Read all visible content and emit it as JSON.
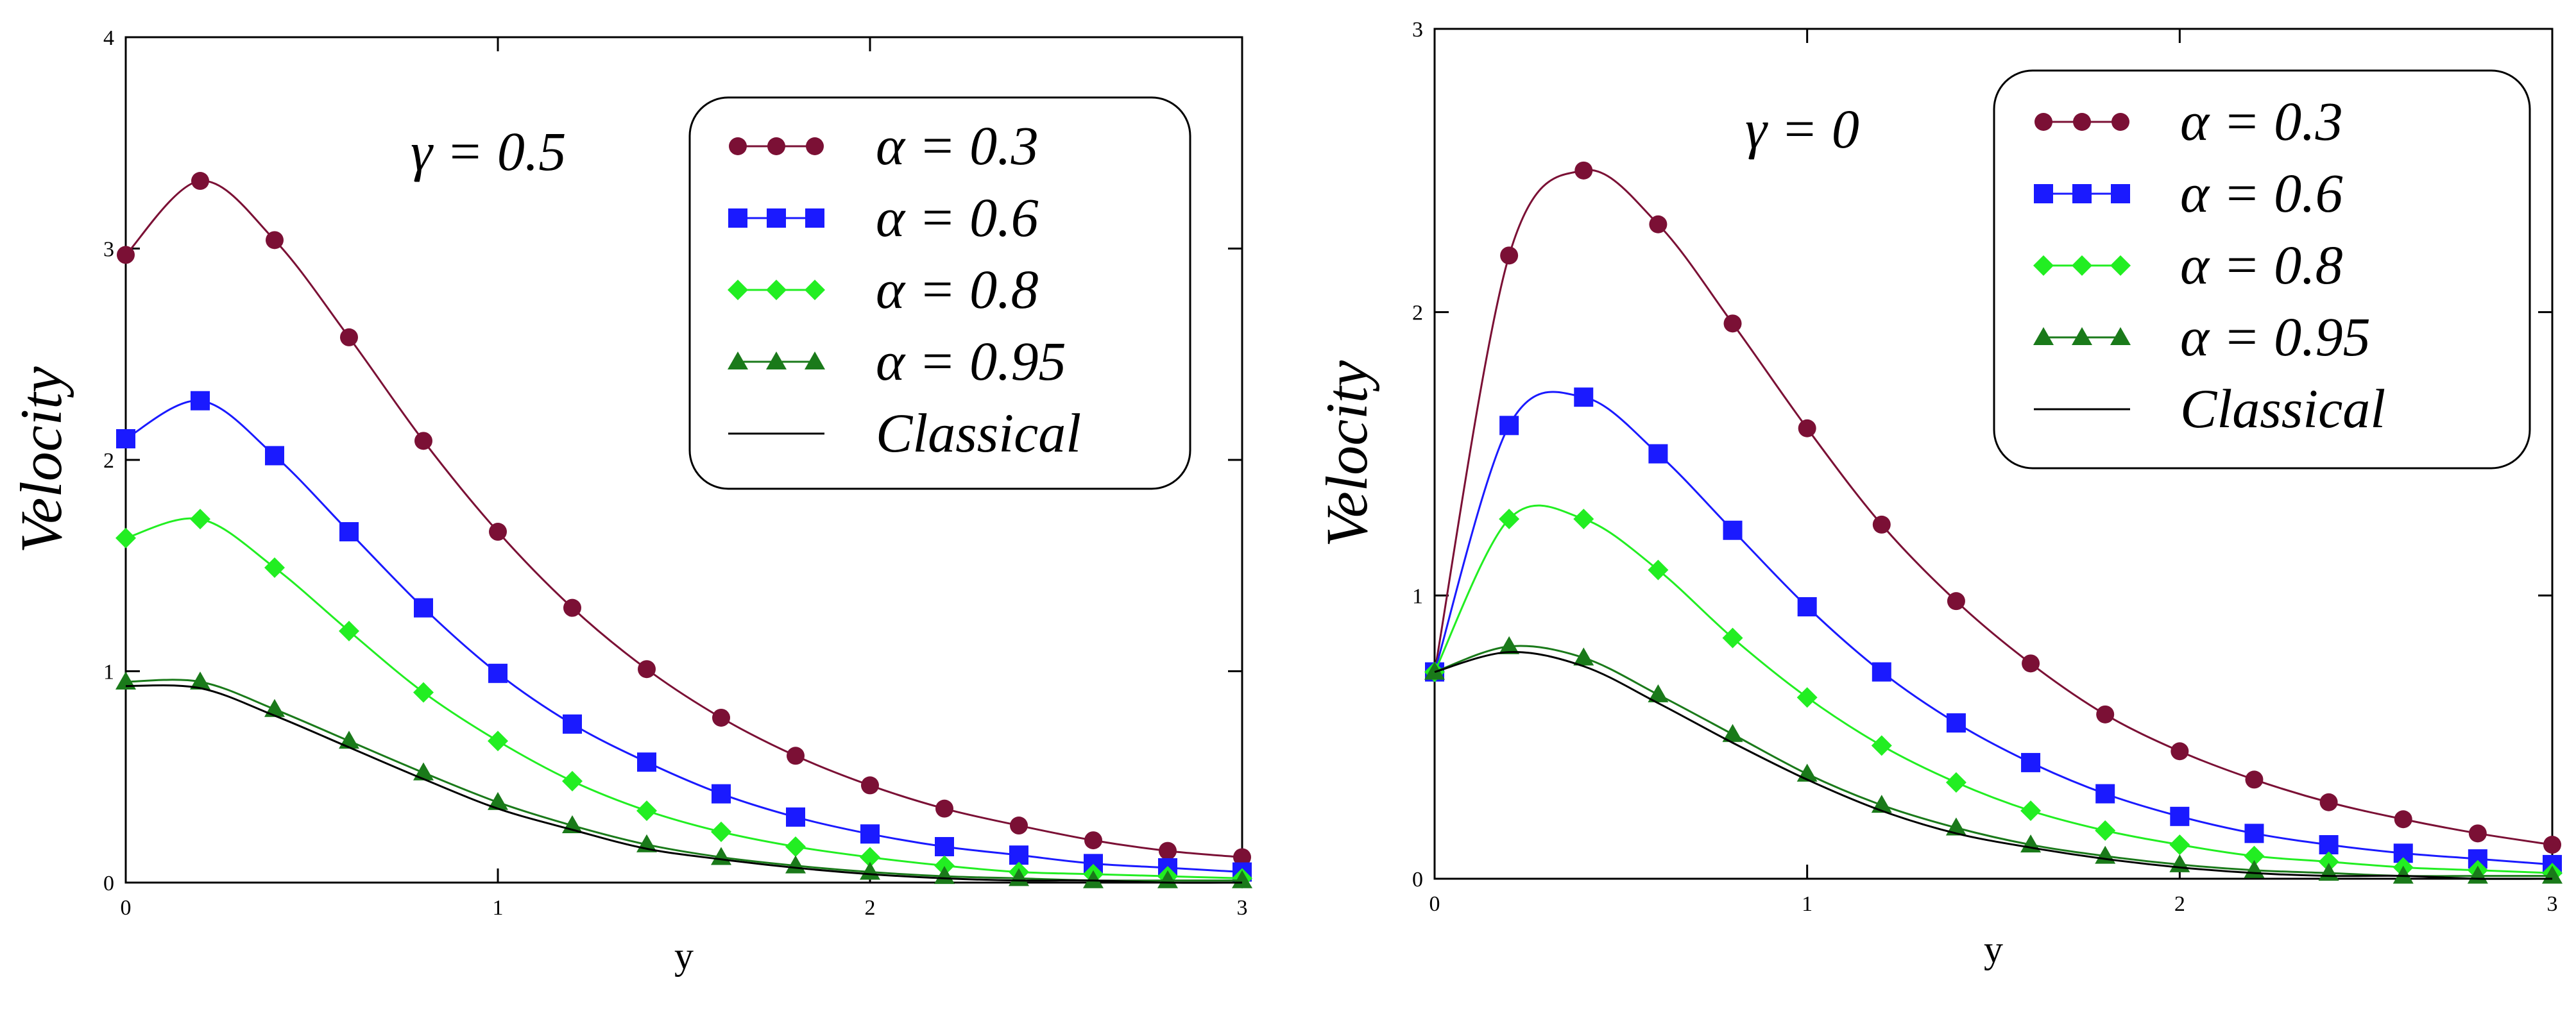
{
  "chart_data": [
    {
      "type": "line",
      "annotation": "γ = 0.5",
      "xlabel": "y",
      "ylabel": "Velocity",
      "xlim": [
        0,
        3
      ],
      "ylim": [
        0,
        4
      ],
      "xticks": [
        "0",
        "1",
        "2",
        "3"
      ],
      "yticks": [
        "0",
        "1",
        "2",
        "3",
        "4"
      ],
      "grid": false,
      "legend_position": "top-right",
      "series": [
        {
          "name": "α = 0.3",
          "color": "#7b1035",
          "marker": "circle",
          "x": [
            0,
            0.2,
            0.4,
            0.6,
            0.8,
            1.0,
            1.2,
            1.4,
            1.6,
            1.8,
            2.0,
            2.2,
            2.4,
            2.6,
            2.8,
            3.0
          ],
          "y": [
            2.97,
            3.32,
            3.04,
            2.58,
            2.09,
            1.66,
            1.3,
            1.01,
            0.78,
            0.6,
            0.46,
            0.35,
            0.27,
            0.2,
            0.15,
            0.12
          ]
        },
        {
          "name": "α = 0.6",
          "color": "#1a1aff",
          "marker": "square",
          "x": [
            0,
            0.2,
            0.4,
            0.6,
            0.8,
            1.0,
            1.2,
            1.4,
            1.6,
            1.8,
            2.0,
            2.2,
            2.4,
            2.6,
            2.8,
            3.0
          ],
          "y": [
            2.1,
            2.28,
            2.02,
            1.66,
            1.3,
            0.99,
            0.75,
            0.57,
            0.42,
            0.31,
            0.23,
            0.17,
            0.13,
            0.09,
            0.07,
            0.05
          ]
        },
        {
          "name": "α = 0.8",
          "color": "#22ee22",
          "marker": "diamond",
          "x": [
            0,
            0.2,
            0.4,
            0.6,
            0.8,
            1.0,
            1.2,
            1.4,
            1.6,
            1.8,
            2.0,
            2.2,
            2.4,
            2.6,
            2.8,
            3.0
          ],
          "y": [
            1.63,
            1.72,
            1.49,
            1.19,
            0.9,
            0.67,
            0.48,
            0.34,
            0.24,
            0.17,
            0.12,
            0.08,
            0.05,
            0.04,
            0.03,
            0.02
          ]
        },
        {
          "name": "α = 0.95",
          "color": "#1a7a1a",
          "marker": "triangle",
          "x": [
            0,
            0.2,
            0.4,
            0.6,
            0.8,
            1.0,
            1.2,
            1.4,
            1.6,
            1.8,
            2.0,
            2.2,
            2.4,
            2.6,
            2.8,
            3.0
          ],
          "y": [
            0.95,
            0.95,
            0.82,
            0.67,
            0.52,
            0.38,
            0.27,
            0.18,
            0.12,
            0.08,
            0.05,
            0.03,
            0.02,
            0.01,
            0.01,
            0.01
          ]
        },
        {
          "name": "Classical",
          "color": "#000000",
          "marker": "none",
          "x": [
            0,
            0.2,
            0.4,
            0.6,
            0.8,
            1.0,
            1.2,
            1.4,
            1.6,
            1.8,
            2.0,
            2.2,
            2.4,
            2.6,
            2.8,
            3.0
          ],
          "y": [
            0.93,
            0.92,
            0.79,
            0.64,
            0.49,
            0.35,
            0.25,
            0.16,
            0.11,
            0.07,
            0.04,
            0.02,
            0.01,
            0.01,
            0.0,
            0.0
          ]
        }
      ]
    },
    {
      "type": "line",
      "annotation": "γ = 0",
      "xlabel": "y",
      "ylabel": "Velocity",
      "xlim": [
        0,
        3
      ],
      "ylim": [
        0,
        3
      ],
      "xticks": [
        "0",
        "1",
        "2",
        "3"
      ],
      "yticks": [
        "0",
        "1",
        "2",
        "3"
      ],
      "grid": false,
      "legend_position": "top-right",
      "series": [
        {
          "name": "α = 0.3",
          "color": "#7b1035",
          "marker": "circle",
          "x": [
            0,
            0.2,
            0.4,
            0.6,
            0.8,
            1.0,
            1.2,
            1.4,
            1.6,
            1.8,
            2.0,
            2.2,
            2.4,
            2.6,
            2.8,
            3.0
          ],
          "y": [
            0.73,
            2.2,
            2.5,
            2.31,
            1.96,
            1.59,
            1.25,
            0.98,
            0.76,
            0.58,
            0.45,
            0.35,
            0.27,
            0.21,
            0.16,
            0.12
          ]
        },
        {
          "name": "α = 0.6",
          "color": "#1a1aff",
          "marker": "square",
          "x": [
            0,
            0.2,
            0.4,
            0.6,
            0.8,
            1.0,
            1.2,
            1.4,
            1.6,
            1.8,
            2.0,
            2.2,
            2.4,
            2.6,
            2.8,
            3.0
          ],
          "y": [
            0.73,
            1.6,
            1.7,
            1.5,
            1.23,
            0.96,
            0.73,
            0.55,
            0.41,
            0.3,
            0.22,
            0.16,
            0.12,
            0.09,
            0.07,
            0.05
          ]
        },
        {
          "name": "α = 0.8",
          "color": "#22ee22",
          "marker": "diamond",
          "x": [
            0,
            0.2,
            0.4,
            0.6,
            0.8,
            1.0,
            1.2,
            1.4,
            1.6,
            1.8,
            2.0,
            2.2,
            2.4,
            2.6,
            2.8,
            3.0
          ],
          "y": [
            0.73,
            1.27,
            1.27,
            1.09,
            0.85,
            0.64,
            0.47,
            0.34,
            0.24,
            0.17,
            0.12,
            0.08,
            0.06,
            0.04,
            0.03,
            0.02
          ]
        },
        {
          "name": "α = 0.95",
          "color": "#1a7a1a",
          "marker": "triangle",
          "x": [
            0,
            0.2,
            0.4,
            0.6,
            0.8,
            1.0,
            1.2,
            1.4,
            1.6,
            1.8,
            2.0,
            2.2,
            2.4,
            2.6,
            2.8,
            3.0
          ],
          "y": [
            0.73,
            0.82,
            0.78,
            0.65,
            0.51,
            0.37,
            0.26,
            0.18,
            0.12,
            0.08,
            0.05,
            0.03,
            0.02,
            0.01,
            0.01,
            0.01
          ]
        },
        {
          "name": "Classical",
          "color": "#000000",
          "marker": "none",
          "x": [
            0,
            0.2,
            0.4,
            0.6,
            0.8,
            1.0,
            1.2,
            1.4,
            1.6,
            1.8,
            2.0,
            2.2,
            2.4,
            2.6,
            2.8,
            3.0
          ],
          "y": [
            0.73,
            0.8,
            0.75,
            0.62,
            0.48,
            0.35,
            0.24,
            0.16,
            0.11,
            0.07,
            0.04,
            0.02,
            0.01,
            0.01,
            0.0,
            0.0
          ]
        }
      ]
    }
  ]
}
